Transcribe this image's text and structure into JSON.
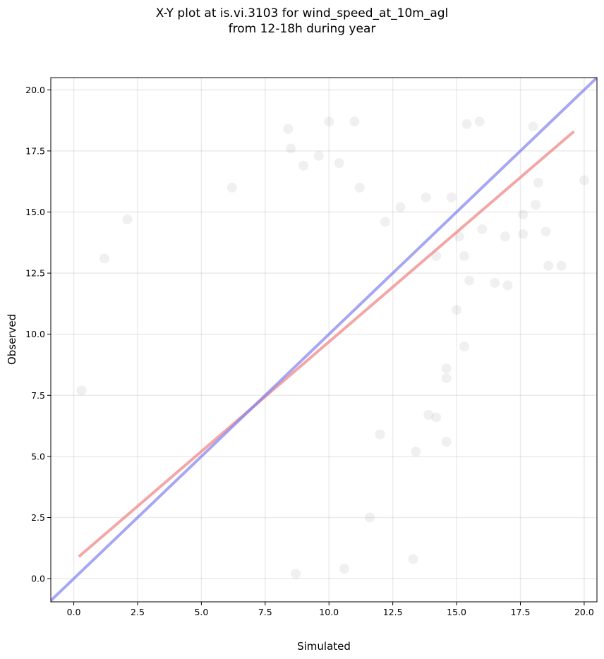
{
  "chart_data": {
    "type": "scatter",
    "title_lines": [
      "X-Y plot at is.vi.3103 for wind_speed_at_10m_agl",
      "from 12-18h during year"
    ],
    "xlabel": "Simulated",
    "ylabel": "Observed",
    "xlim": [
      -0.9,
      20.5
    ],
    "ylim": [
      -0.95,
      20.5
    ],
    "x_ticks": [
      0.0,
      2.5,
      5.0,
      7.5,
      10.0,
      12.5,
      15.0,
      17.5,
      20.0
    ],
    "x_tick_labels": [
      "0.0",
      "2.5",
      "5.0",
      "7.5",
      "10.0",
      "12.5",
      "15.0",
      "17.5",
      "20.0"
    ],
    "y_ticks": [
      0.0,
      2.5,
      5.0,
      7.5,
      10.0,
      12.5,
      15.0,
      17.5,
      20.0
    ],
    "y_tick_labels": [
      "0.0",
      "2.5",
      "5.0",
      "7.5",
      "10.0",
      "12.5",
      "15.0",
      "17.5",
      "20.0"
    ],
    "grid": true,
    "point_color": "#000000",
    "point_alpha": 0.06,
    "points": [
      [
        18.0,
        18.5
      ],
      [
        15.9,
        18.7
      ],
      [
        15.4,
        18.6
      ],
      [
        11.0,
        18.7
      ],
      [
        10.0,
        18.7
      ],
      [
        8.4,
        18.4
      ],
      [
        20.0,
        16.3
      ],
      [
        18.2,
        16.2
      ],
      [
        19.1,
        12.8
      ],
      [
        18.6,
        12.8
      ],
      [
        18.5,
        14.2
      ],
      [
        17.6,
        14.1
      ],
      [
        17.6,
        14.9
      ],
      [
        18.1,
        15.3
      ],
      [
        16.5,
        12.1
      ],
      [
        17.0,
        12.0
      ],
      [
        15.5,
        12.2
      ],
      [
        15.3,
        9.5
      ],
      [
        15.0,
        11.0
      ],
      [
        14.6,
        8.6
      ],
      [
        14.6,
        8.2
      ],
      [
        14.6,
        5.6
      ],
      [
        14.2,
        6.6
      ],
      [
        13.9,
        6.7
      ],
      [
        13.4,
        5.2
      ],
      [
        13.3,
        0.8
      ],
      [
        12.0,
        5.9
      ],
      [
        11.6,
        2.5
      ],
      [
        10.6,
        0.4
      ],
      [
        8.7,
        0.2
      ],
      [
        2.1,
        14.7
      ],
      [
        1.2,
        13.1
      ],
      [
        0.3,
        7.7
      ],
      [
        6.2,
        16.0
      ],
      [
        13.8,
        15.6
      ],
      [
        14.8,
        15.6
      ],
      [
        16.0,
        14.3
      ],
      [
        16.9,
        14.0
      ],
      [
        14.2,
        13.2
      ],
      [
        12.8,
        15.2
      ],
      [
        12.2,
        14.6
      ],
      [
        11.2,
        16.0
      ],
      [
        10.4,
        17.0
      ],
      [
        9.6,
        17.3
      ],
      [
        9.0,
        16.9
      ],
      [
        8.5,
        17.6
      ],
      [
        15.1,
        14.0
      ],
      [
        15.3,
        13.2
      ]
    ],
    "series": [
      {
        "values": {
          "x": [
            0.2,
            19.6
          ],
          "y": [
            0.9,
            18.3
          ]
        },
        "color": "#f08080",
        "alpha": 0.7
      },
      {
        "values": {
          "x": [
            -1.0,
            21.0
          ],
          "y": [
            -1.0,
            21.0
          ]
        },
        "color": "#8080f0",
        "alpha": 0.7
      }
    ]
  }
}
